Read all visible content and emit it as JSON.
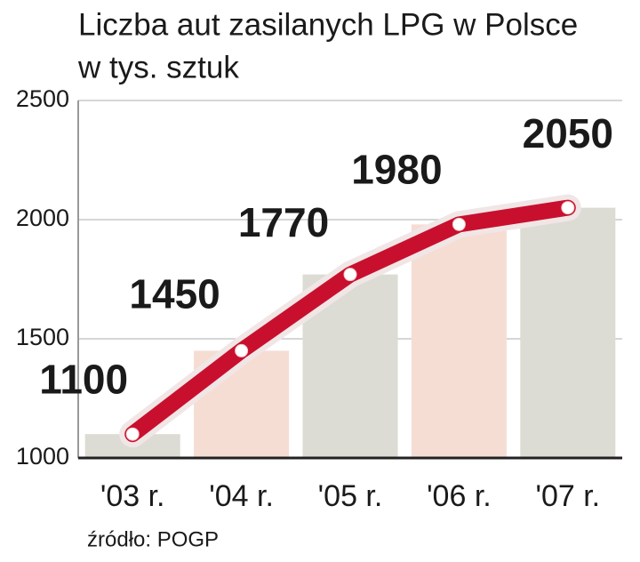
{
  "chart_data": {
    "type": "line",
    "title": "Liczba aut zasilanych LPG w Polsce",
    "subtitle": "w tys. sztuk",
    "categories": [
      "'03 r.",
      "'04 r.",
      "'05 r.",
      "'06 r.",
      "'07 r."
    ],
    "values": [
      1100,
      1450,
      1770,
      1980,
      2050
    ],
    "color": "#c8102e",
    "bar_colors": [
      "#dcdcd4",
      "#f6ddd4"
    ],
    "ylim": [
      1000,
      2500
    ],
    "yticks": [
      1000,
      1500,
      2000,
      2500
    ],
    "grid": true,
    "source": "źródło: POGP"
  }
}
